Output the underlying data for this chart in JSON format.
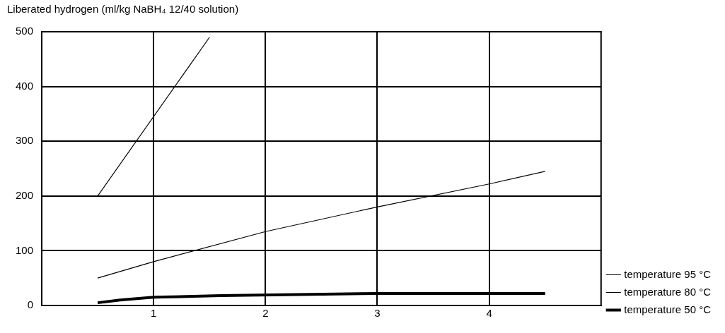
{
  "chart_data": {
    "type": "line",
    "title": "Liberated hydrogen (ml/kg NaBH₄ 12/40 solution)",
    "xlim": [
      0,
      5
    ],
    "xticks": [
      1,
      2,
      3,
      4
    ],
    "ylim": [
      0,
      500
    ],
    "yticks": [
      0,
      100,
      200,
      300,
      400,
      500
    ],
    "grid": true,
    "legend": "right",
    "marker": "none",
    "line_style": "solid",
    "series": [
      {
        "name": "temperature 95 °C",
        "color": "#000000",
        "x": [
          0.5,
          1.5
        ],
        "values": [
          200,
          490
        ]
      },
      {
        "name": "temperature 80 °C",
        "color": "#000000",
        "x": [
          0.5,
          1,
          2,
          3,
          4,
          4.5
        ],
        "values": [
          50,
          80,
          135,
          180,
          222,
          245
        ]
      },
      {
        "name": "temperature 50 °C",
        "color": "#000000",
        "x": [
          0.5,
          0.7,
          1,
          1.6,
          3,
          4.5
        ],
        "values": [
          5,
          10,
          15,
          18,
          22,
          22
        ]
      }
    ]
  }
}
